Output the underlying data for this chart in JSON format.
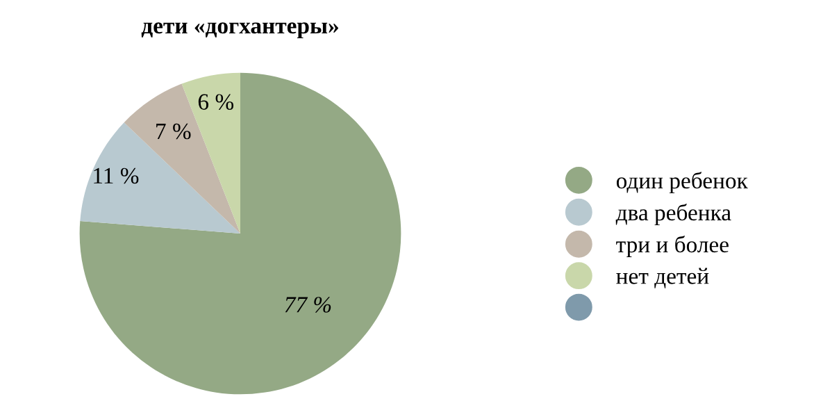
{
  "chart_data": {
    "type": "pie",
    "title": "дети «догхантеры»",
    "categories": [
      "один ребенок",
      "два ребенка",
      "три и более",
      "нет детей",
      null
    ],
    "values": [
      77,
      11,
      7,
      6,
      0
    ],
    "colors": [
      "#94a985",
      "#b8c9d0",
      "#c4b8ab",
      "#c9d7aa",
      "#7f9aab"
    ],
    "value_labels": [
      "77 %",
      "11 %",
      "7 %",
      "6 %",
      null
    ],
    "legend": "right"
  }
}
